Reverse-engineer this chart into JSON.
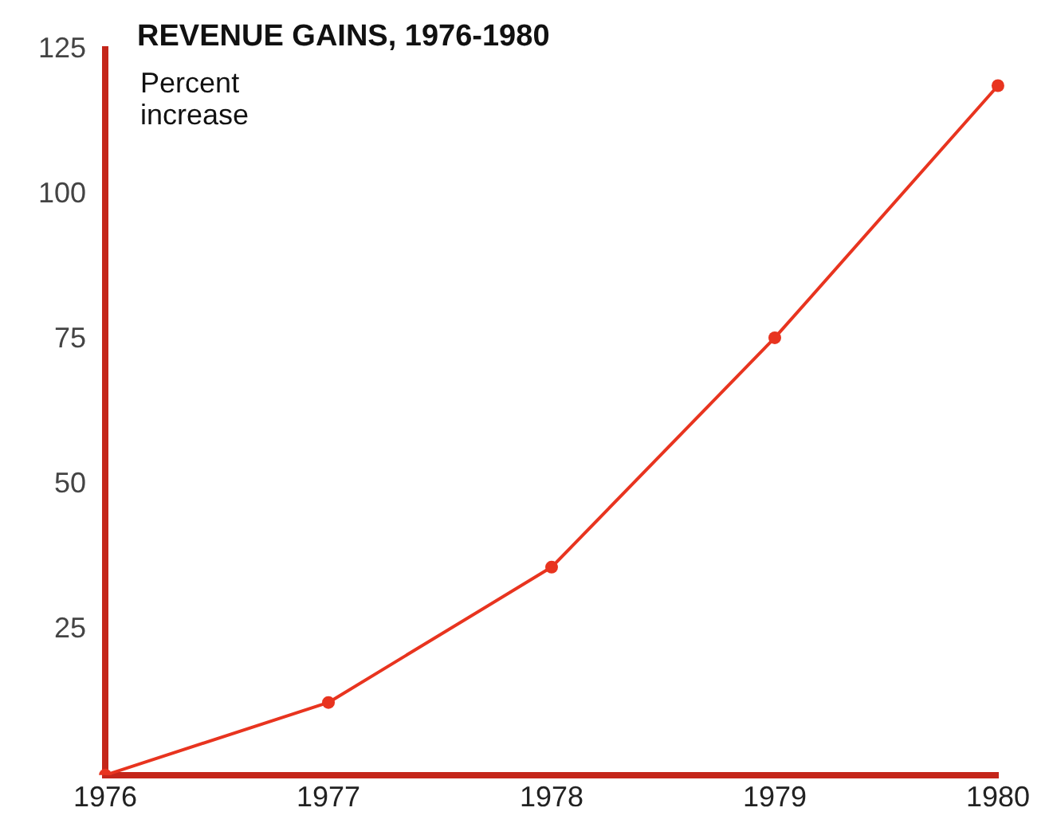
{
  "chart_data": {
    "type": "line",
    "title": "REVENUE GAINS, 1976-1980",
    "ylabel": "Percent increase",
    "categories": [
      "1976",
      "1977",
      "1978",
      "1979",
      "1980"
    ],
    "series": [
      {
        "color": "#e8341f",
        "values": [
          0,
          12.5,
          35.8,
          75.3,
          118.7
        ]
      }
    ],
    "ylim": [
      0,
      125
    ],
    "yticks": [
      25,
      50,
      75,
      100,
      125
    ],
    "grid": false,
    "legend": false,
    "marker": "circle",
    "line_style": "solid"
  }
}
